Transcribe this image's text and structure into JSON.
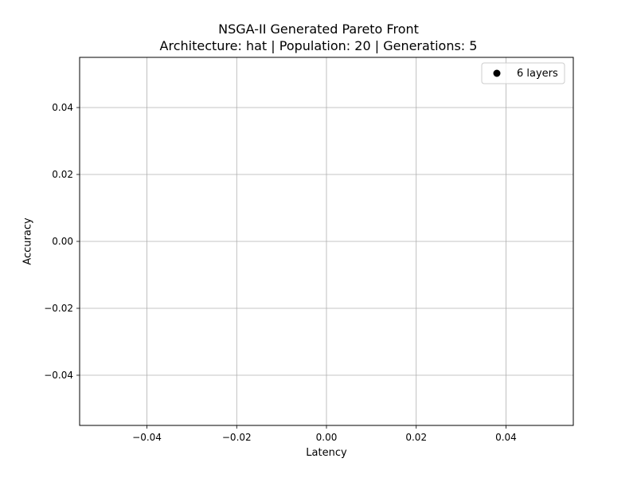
{
  "chart_data": {
    "type": "scatter",
    "title": "NSGA-II Generated Pareto Front",
    "subtitle": "Architecture: hat | Population: 20 | Generations: 5",
    "xlabel": "Latency",
    "ylabel": "Accuracy",
    "xlim": [
      -0.055,
      0.055
    ],
    "ylim": [
      -0.055,
      0.055
    ],
    "xticks": [
      -0.04,
      -0.02,
      0.0,
      0.02,
      0.04
    ],
    "yticks": [
      -0.04,
      -0.02,
      0.0,
      0.02,
      0.04
    ],
    "xtick_labels": [
      "−0.04",
      "−0.02",
      "0.00",
      "0.02",
      "0.04"
    ],
    "ytick_labels": [
      "−0.04",
      "−0.02",
      "0.00",
      "0.02",
      "0.04"
    ],
    "grid": true,
    "legend_position": "top-right",
    "series": [
      {
        "name": "6 layers",
        "color": "#000000",
        "marker": "circle",
        "points": []
      }
    ]
  }
}
